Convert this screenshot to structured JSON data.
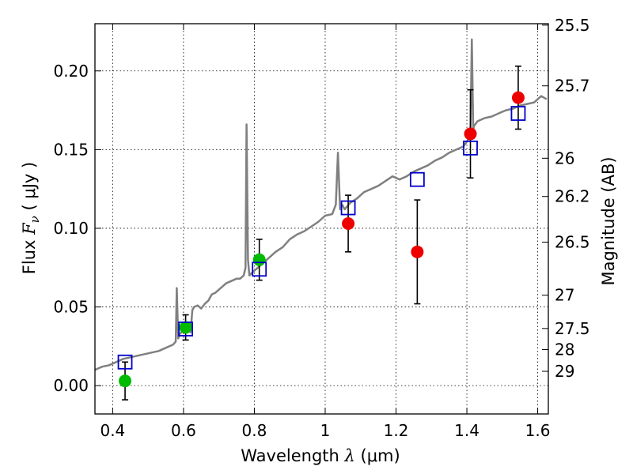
{
  "chart_data": {
    "type": "scatter",
    "xlabel": {
      "prefix": "Wavelength  ",
      "symbol": "λ",
      "unit": " (μm)"
    },
    "ylabel": {
      "prefix": "Flux  ",
      "symbol": "F",
      "subscript": "ν",
      "unit": "  ( μJy )"
    },
    "y2label": "Magnitude (AB)",
    "xlim": [
      0.35,
      1.63
    ],
    "ylim": [
      -0.018,
      0.23
    ],
    "xticks": [
      0.4,
      0.6,
      0.8,
      1.0,
      1.2,
      1.4,
      1.6
    ],
    "xtick_labels": [
      "0.4",
      "0.6",
      "0.8",
      "1",
      "1.2",
      "1.4",
      "1.6"
    ],
    "yticks": [
      0.0,
      0.05,
      0.1,
      0.15,
      0.2
    ],
    "ytick_labels": [
      "0.00",
      "0.05",
      "0.10",
      "0.15",
      "0.20"
    ],
    "y2ticks": [
      {
        "label": "25.5",
        "flux": 0.2291
      },
      {
        "label": "25.7",
        "flux": 0.1905
      },
      {
        "label": "26",
        "flux": 0.1445
      },
      {
        "label": "26.2",
        "flux": 0.1202
      },
      {
        "label": "26.5",
        "flux": 0.0912
      },
      {
        "label": "27",
        "flux": 0.0575
      },
      {
        "label": "27.5",
        "flux": 0.0363
      },
      {
        "label": "28",
        "flux": 0.0229
      },
      {
        "label": "29",
        "flux": 0.0091
      }
    ],
    "grid": true,
    "colors": {
      "model_line": "#808080",
      "green_points": "#00bb00",
      "red_points": "#ee0000",
      "model_squares": "#0000cc",
      "errorbar": "#000000"
    },
    "series": [
      {
        "kind": "line",
        "x": [
          0.35,
          0.37,
          0.39,
          0.41,
          0.43,
          0.45,
          0.47,
          0.49,
          0.51,
          0.53,
          0.55,
          0.57,
          0.578,
          0.581,
          0.585,
          0.59,
          0.6,
          0.61,
          0.62,
          0.625,
          0.63,
          0.64,
          0.65,
          0.66,
          0.67,
          0.68,
          0.69,
          0.7,
          0.71,
          0.72,
          0.73,
          0.74,
          0.75,
          0.76,
          0.77,
          0.775,
          0.778,
          0.782,
          0.786,
          0.79,
          0.8,
          0.81,
          0.82,
          0.84,
          0.86,
          0.88,
          0.9,
          0.92,
          0.94,
          0.96,
          0.98,
          1.0,
          1.02,
          1.03,
          1.036,
          1.042,
          1.048,
          1.055,
          1.07,
          1.09,
          1.11,
          1.13,
          1.15,
          1.17,
          1.19,
          1.21,
          1.23,
          1.25,
          1.27,
          1.29,
          1.31,
          1.33,
          1.35,
          1.37,
          1.39,
          1.4,
          1.405,
          1.41,
          1.414,
          1.418,
          1.42,
          1.43,
          1.45,
          1.47,
          1.49,
          1.51,
          1.53,
          1.55,
          1.57,
          1.59,
          1.61,
          1.625
        ],
        "y": [
          0.01,
          0.012,
          0.013,
          0.015,
          0.017,
          0.018,
          0.019,
          0.02,
          0.021,
          0.022,
          0.024,
          0.026,
          0.028,
          0.062,
          0.03,
          0.033,
          0.035,
          0.036,
          0.034,
          0.048,
          0.05,
          0.051,
          0.049,
          0.052,
          0.054,
          0.058,
          0.059,
          0.061,
          0.063,
          0.065,
          0.066,
          0.067,
          0.068,
          0.068,
          0.07,
          0.075,
          0.166,
          0.08,
          0.07,
          0.071,
          0.073,
          0.075,
          0.077,
          0.081,
          0.085,
          0.088,
          0.093,
          0.096,
          0.098,
          0.101,
          0.104,
          0.108,
          0.109,
          0.115,
          0.148,
          0.112,
          0.115,
          0.112,
          0.116,
          0.119,
          0.123,
          0.125,
          0.127,
          0.13,
          0.133,
          0.131,
          0.133,
          0.136,
          0.138,
          0.14,
          0.143,
          0.145,
          0.148,
          0.15,
          0.152,
          0.155,
          0.157,
          0.16,
          0.22,
          0.162,
          0.165,
          0.168,
          0.17,
          0.171,
          0.173,
          0.175,
          0.176,
          0.178,
          0.179,
          0.18,
          0.184,
          0.182
        ]
      },
      {
        "kind": "points",
        "marker": "circle",
        "color": "green",
        "x": [
          0.435,
          0.606,
          0.814
        ],
        "y": [
          0.003,
          0.037,
          0.08
        ],
        "yerr": [
          0.012,
          0.008,
          0.013
        ]
      },
      {
        "kind": "points",
        "marker": "circle",
        "color": "red",
        "x": [
          1.065,
          1.26,
          1.41,
          1.545
        ],
        "y": [
          0.103,
          0.085,
          0.16,
          0.183
        ],
        "yerr": [
          0.018,
          0.033,
          0.028,
          0.02
        ]
      },
      {
        "kind": "points",
        "marker": "square",
        "color": "blue",
        "x": [
          0.435,
          0.606,
          0.814,
          1.065,
          1.26,
          1.41,
          1.545
        ],
        "y": [
          0.015,
          0.036,
          0.074,
          0.113,
          0.131,
          0.151,
          0.173
        ]
      }
    ]
  }
}
